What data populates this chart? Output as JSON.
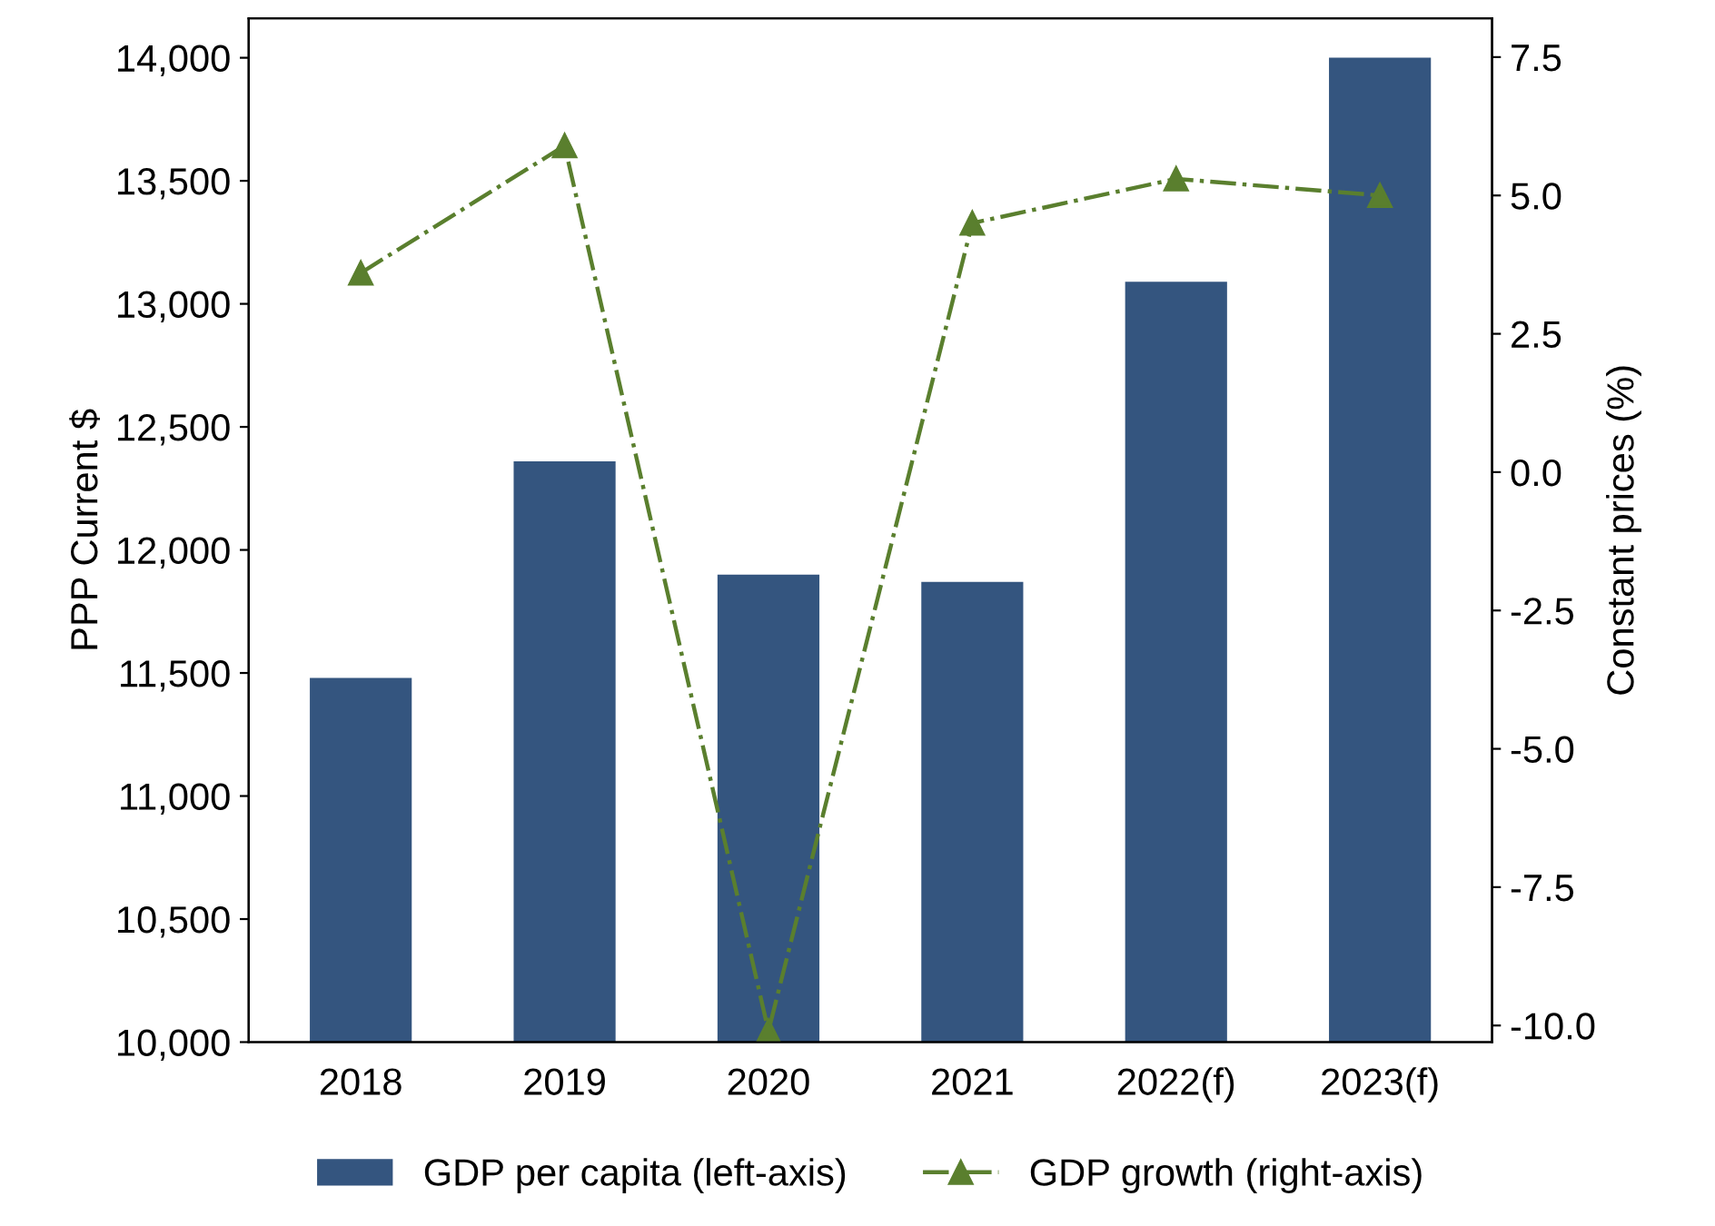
{
  "chart_data": {
    "type": "bar",
    "ylabel": "PPP Current $",
    "y2label": "Constant prices (%)",
    "categories": [
      "2018",
      "2019",
      "2020",
      "2021",
      "2022(f)",
      "2023(f)"
    ],
    "series": [
      {
        "name": "GDP per capita (left-axis)",
        "color": "#34557f",
        "values": [
          11480,
          12360,
          11900,
          11870,
          13090,
          14000
        ]
      },
      {
        "name": "GDP growth (right-axis)",
        "type": "line",
        "axis": "y2",
        "color": "#5a7f2e",
        "marker": "triangle",
        "line_style": "dashed",
        "values": [
          3.6,
          5.9,
          -10.1,
          4.5,
          5.3,
          5.0
        ]
      }
    ],
    "ylim": [
      10000,
      14160
    ],
    "yticks": [
      {
        "value": 10000,
        "label": "10,000"
      },
      {
        "value": 10500,
        "label": "10,500"
      },
      {
        "value": 11000,
        "label": "11,000"
      },
      {
        "value": 11500,
        "label": "11,500"
      },
      {
        "value": 12000,
        "label": "12,000"
      },
      {
        "value": 12500,
        "label": "12,500"
      },
      {
        "value": 13000,
        "label": "13,000"
      },
      {
        "value": 13500,
        "label": "13,500"
      },
      {
        "value": 14000,
        "label": "14,000"
      }
    ],
    "y2lim": [
      -10.3,
      8.2
    ],
    "y2ticks": [
      {
        "value": -10,
        "label": "-10.0"
      },
      {
        "value": -7.5,
        "label": "-7.5"
      },
      {
        "value": -5,
        "label": "-5.0"
      },
      {
        "value": -2.5,
        "label": "-2.5"
      },
      {
        "value": 0,
        "label": "0.0"
      },
      {
        "value": 2.5,
        "label": "2.5"
      },
      {
        "value": 5,
        "label": "5.0"
      },
      {
        "value": 7.5,
        "label": "7.5"
      }
    ],
    "grid": false,
    "legend": "bottom"
  }
}
